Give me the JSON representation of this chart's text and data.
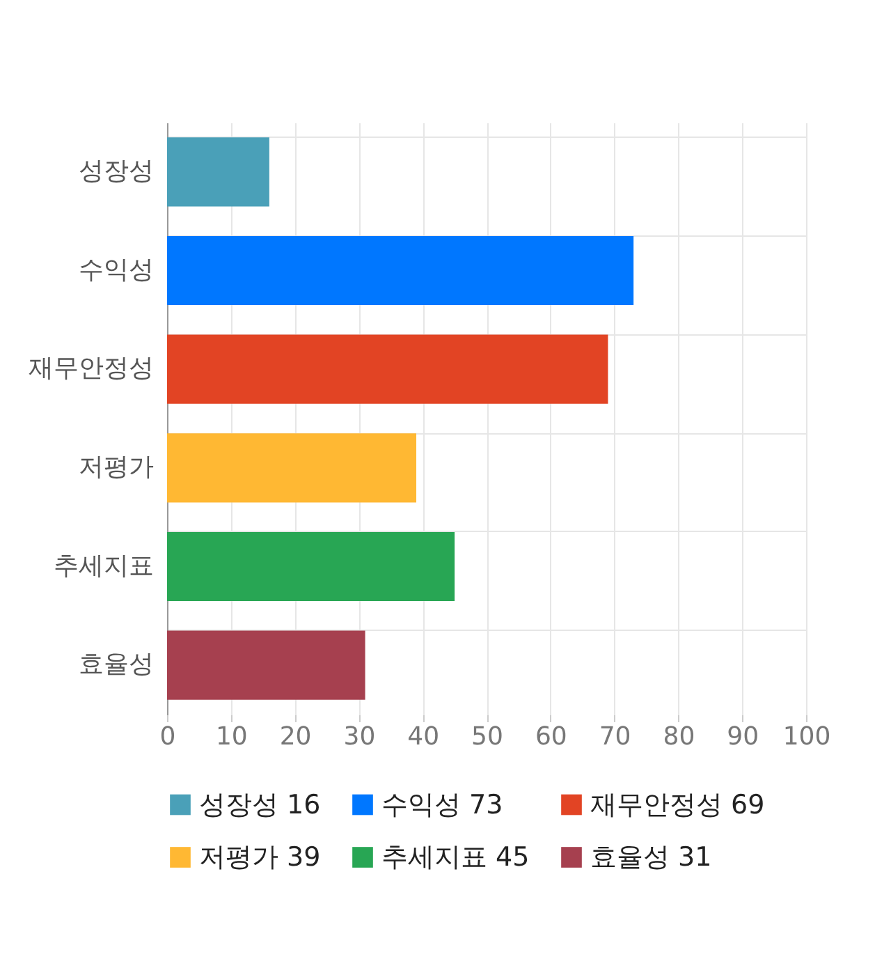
{
  "chart_data": {
    "type": "bar",
    "orientation": "horizontal",
    "categories": [
      "성장성",
      "수익성",
      "재무안정성",
      "저평가",
      "추세지표",
      "효율성"
    ],
    "series": [
      {
        "name": "성장성 16",
        "color": "#4aa0b8",
        "values": [
          16,
          null,
          null,
          null,
          null,
          null
        ]
      },
      {
        "name": "수익성 73",
        "color": "#0077ff",
        "values": [
          null,
          73,
          null,
          null,
          null,
          null
        ]
      },
      {
        "name": "재무안정성 69",
        "color": "#e24424",
        "values": [
          null,
          null,
          69,
          null,
          null,
          null
        ]
      },
      {
        "name": "저평가 39",
        "color": "#ffb833",
        "values": [
          null,
          null,
          null,
          39,
          null,
          null
        ]
      },
      {
        "name": "추세지표 45",
        "color": "#28a654",
        "values": [
          null,
          null,
          null,
          null,
          45,
          null
        ]
      },
      {
        "name": "효율성 31",
        "color": "#a6404f",
        "values": [
          null,
          null,
          null,
          null,
          null,
          31
        ]
      }
    ],
    "xlim": [
      0,
      100
    ],
    "xticks": [
      0,
      10,
      20,
      30,
      40,
      50,
      60,
      70,
      80,
      90,
      100
    ],
    "grid": true,
    "legend": "bottom"
  }
}
